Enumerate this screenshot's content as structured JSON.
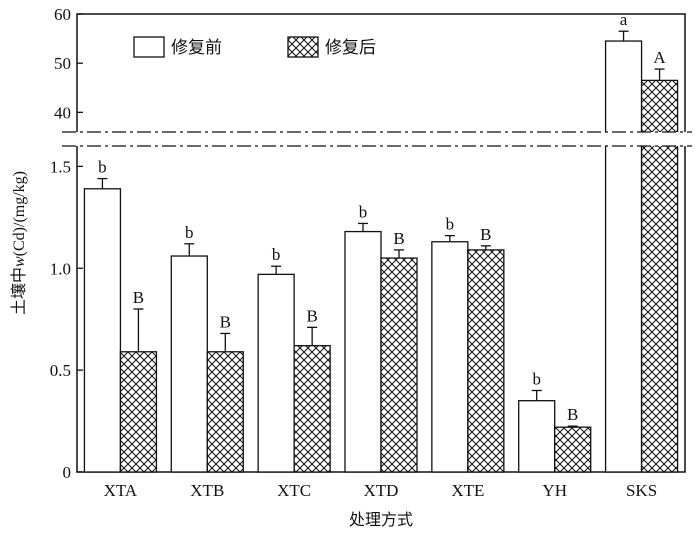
{
  "chart_data": {
    "type": "bar",
    "xlabel": "处理方式",
    "ylabel_parts": [
      "土壤中",
      "w",
      "(Cd)/(mg/kg)"
    ],
    "categories": [
      "XTA",
      "XTB",
      "XTC",
      "XTD",
      "XTE",
      "YH",
      "SKS"
    ],
    "series": [
      {
        "name": "修复前",
        "values": [
          1.39,
          1.06,
          0.97,
          1.18,
          1.13,
          0.35,
          54.5
        ],
        "errors": [
          0.05,
          0.06,
          0.04,
          0.04,
          0.03,
          0.05,
          2.0
        ],
        "letters": [
          "b",
          "b",
          "b",
          "b",
          "b",
          "b",
          "a"
        ],
        "fill": "none"
      },
      {
        "name": "修复后",
        "values": [
          0.59,
          0.59,
          0.62,
          1.05,
          1.09,
          0.22,
          46.5
        ],
        "errors": [
          0.21,
          0.09,
          0.09,
          0.04,
          0.02,
          0.005,
          2.3
        ],
        "letters": [
          "B",
          "B",
          "B",
          "B",
          "B",
          "B",
          "A"
        ],
        "fill": "crosshatch"
      }
    ],
    "axis_break": true,
    "lower_ylim": [
      0,
      1.6
    ],
    "lower_yticks": [
      0,
      0.5,
      1.0,
      1.5
    ],
    "lower_ytick_labels": [
      "0",
      "0.5",
      "1.0",
      "1.5"
    ],
    "upper_ylim": [
      36,
      60
    ],
    "upper_yticks": [
      40,
      50,
      60
    ],
    "upper_ytick_labels": [
      "40",
      "50",
      "60"
    ],
    "legend_position": "top-left",
    "grid": false
  }
}
